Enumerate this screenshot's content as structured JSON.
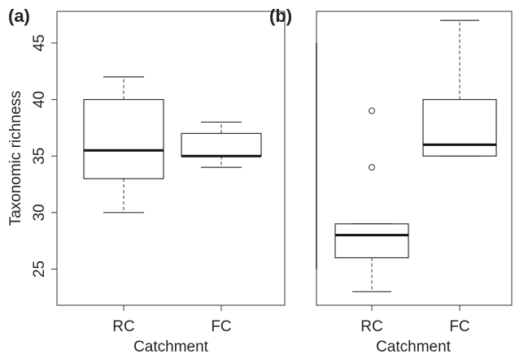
{
  "chart_data": [
    {
      "panel": "(a)",
      "type": "boxplot",
      "xlabel": "Catchment",
      "ylabel": "Taxonomic richness",
      "ylim": [
        21.8,
        47.8
      ],
      "yticks": [
        25,
        30,
        35,
        40,
        45
      ],
      "categories": [
        "RC",
        "FC"
      ],
      "boxes": [
        {
          "category": "RC",
          "whisker_low": 30,
          "q1": 33,
          "median": 35.5,
          "q3": 40,
          "whisker_high": 42,
          "outliers": []
        },
        {
          "category": "FC",
          "whisker_low": 34,
          "q1": 35,
          "median": 35,
          "q3": 37,
          "whisker_high": 38,
          "outliers": []
        }
      ],
      "grid": false
    },
    {
      "panel": "(b)",
      "type": "boxplot",
      "xlabel": "Catchment",
      "ylabel": "",
      "ylim": [
        21.8,
        47.8
      ],
      "yticks": [
        25,
        30,
        35,
        40,
        45
      ],
      "categories": [
        "RC",
        "FC"
      ],
      "boxes": [
        {
          "category": "RC",
          "whisker_low": 23,
          "q1": 26,
          "median": 28,
          "q3": 29,
          "whisker_high": 29,
          "outliers": [
            34,
            39
          ]
        },
        {
          "category": "FC",
          "whisker_low": 35,
          "q1": 35,
          "median": 36,
          "q3": 40,
          "whisker_high": 47,
          "outliers": []
        }
      ],
      "grid": false
    }
  ]
}
